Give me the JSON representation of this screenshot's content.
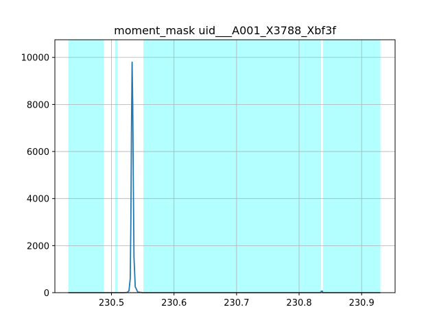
{
  "chart_data": {
    "type": "line",
    "title": "moment_mask uid___A001_X3788_Xbf3f",
    "xlabel": "",
    "ylabel": "",
    "xlim": [
      230.4095,
      230.9535
    ],
    "ylim": [
      0,
      10750
    ],
    "grid": true,
    "xticks": [
      230.5,
      230.6,
      230.7,
      230.8,
      230.9
    ],
    "yticks": [
      0,
      2000,
      4000,
      6000,
      8000,
      10000
    ],
    "x_tick_labels": [
      "230.5",
      "230.6",
      "230.7",
      "230.8",
      "230.9"
    ],
    "y_tick_labels": [
      "0",
      "2000",
      "4000",
      "6000",
      "8000",
      "10000"
    ],
    "shaded_ranges": [
      [
        230.431,
        230.488
      ],
      [
        230.506,
        230.51
      ],
      [
        230.551,
        230.835
      ],
      [
        230.838,
        230.93
      ]
    ],
    "colors": {
      "shade": "#b3ffff",
      "series": "#1f77b4",
      "baseline": "#ff7f0e",
      "grid": "#b0b0b0"
    },
    "series": [
      {
        "x": [
          230.431,
          230.5,
          230.52,
          230.525,
          230.528,
          230.53,
          230.531,
          230.532,
          230.533,
          230.534,
          230.535,
          230.536,
          230.538,
          230.542,
          230.55,
          230.7,
          230.834,
          230.836,
          230.837,
          230.838,
          230.84,
          230.93
        ],
        "y": [
          0,
          0,
          0,
          10,
          80,
          600,
          3000,
          7000,
          9800,
          8000,
          4500,
          1500,
          250,
          30,
          0,
          0,
          0,
          70,
          70,
          0,
          0,
          0
        ]
      },
      {
        "x": [
          230.431,
          230.93
        ],
        "y": [
          0,
          0
        ]
      }
    ]
  }
}
